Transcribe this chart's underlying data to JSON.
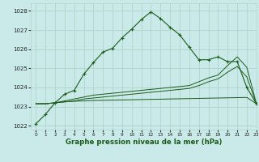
{
  "title": "Graphe pression niveau de la mer (hPa)",
  "bg_color": "#caeaea",
  "grid_color": "#b0d4cc",
  "line_color": "#1a5c1a",
  "xlim": [
    -0.5,
    23
  ],
  "ylim": [
    1021.8,
    1028.4
  ],
  "yticks": [
    1022,
    1023,
    1024,
    1025,
    1026,
    1027,
    1028
  ],
  "xticks": [
    0,
    1,
    2,
    3,
    4,
    5,
    6,
    7,
    8,
    9,
    10,
    11,
    12,
    13,
    14,
    15,
    16,
    17,
    18,
    19,
    20,
    21,
    22,
    23
  ],
  "series1": [
    1022.1,
    1022.6,
    1023.2,
    1023.65,
    1023.85,
    1024.7,
    1025.3,
    1025.85,
    1026.05,
    1026.6,
    1027.05,
    1027.55,
    1027.95,
    1027.6,
    1027.15,
    1026.75,
    1026.1,
    1025.45,
    1025.45,
    1025.6,
    1025.35,
    1025.35,
    1024.0,
    1023.15
  ],
  "series2": [
    1023.15,
    1023.15,
    1023.2,
    1023.25,
    1023.28,
    1023.3,
    1023.32,
    1023.33,
    1023.34,
    1023.35,
    1023.36,
    1023.37,
    1023.38,
    1023.39,
    1023.4,
    1023.41,
    1023.42,
    1023.43,
    1023.44,
    1023.45,
    1023.46,
    1023.47,
    1023.48,
    1023.15
  ],
  "series3": [
    1023.15,
    1023.15,
    1023.2,
    1023.3,
    1023.4,
    1023.5,
    1023.6,
    1023.65,
    1023.7,
    1023.75,
    1023.8,
    1023.85,
    1023.9,
    1023.95,
    1024.0,
    1024.05,
    1024.1,
    1024.3,
    1024.5,
    1024.65,
    1025.15,
    1025.6,
    1025.05,
    1023.15
  ],
  "series4": [
    1023.15,
    1023.15,
    1023.2,
    1023.25,
    1023.3,
    1023.4,
    1023.45,
    1023.5,
    1023.55,
    1023.6,
    1023.65,
    1023.7,
    1023.75,
    1023.8,
    1023.85,
    1023.9,
    1023.95,
    1024.1,
    1024.3,
    1024.45,
    1024.8,
    1025.1,
    1024.55,
    1023.15
  ]
}
